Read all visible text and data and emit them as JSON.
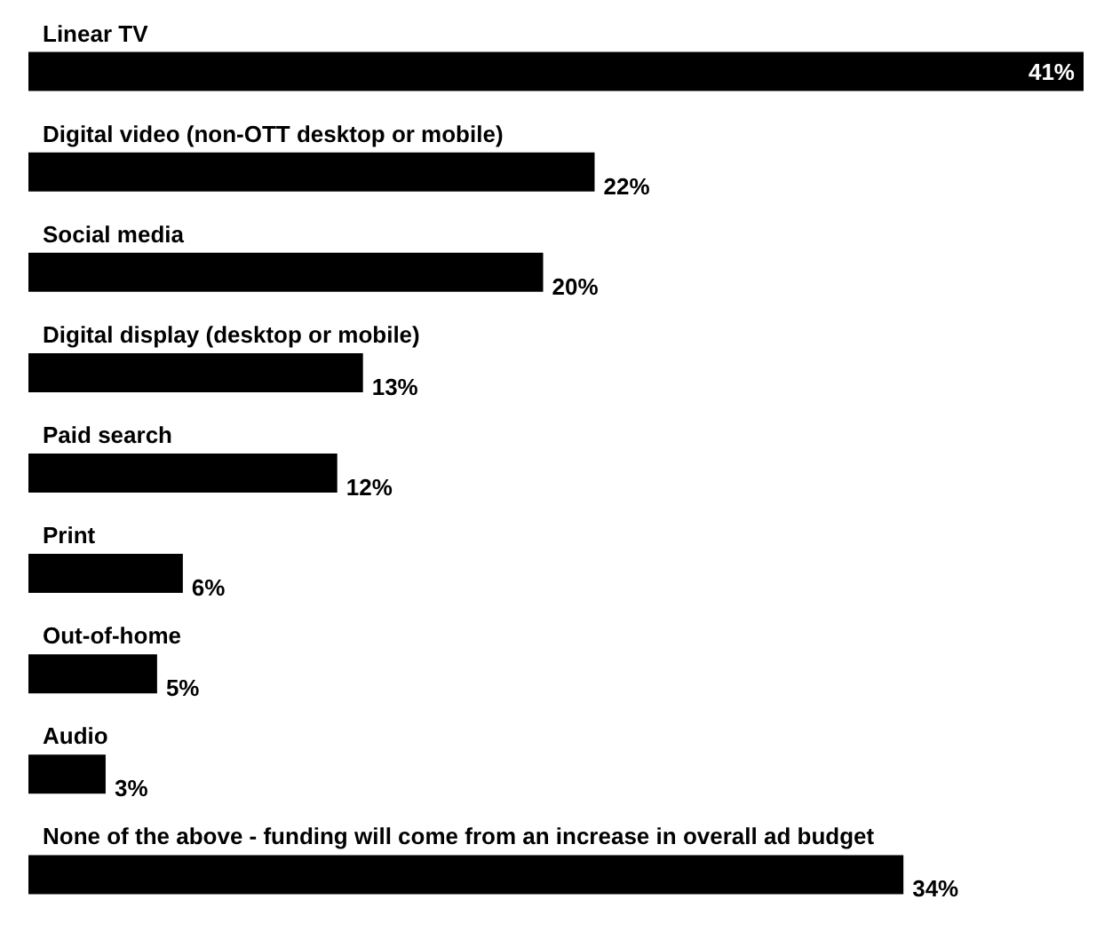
{
  "chart_data": {
    "type": "bar",
    "orientation": "horizontal",
    "categories": [
      "Linear TV",
      "Digital video (non-OTT desktop or mobile)",
      "Social media",
      "Digital display (desktop or mobile)",
      "Paid search",
      "Print",
      "Out-of-home",
      "Audio",
      "None of the above - funding will come from an increase in overall ad budget"
    ],
    "values": [
      41,
      22,
      20,
      13,
      12,
      6,
      5,
      3,
      34
    ],
    "value_labels": [
      "41%",
      "22%",
      "20%",
      "13%",
      "12%",
      "6%",
      "5%",
      "3%",
      "34%"
    ],
    "color": "#000000"
  }
}
